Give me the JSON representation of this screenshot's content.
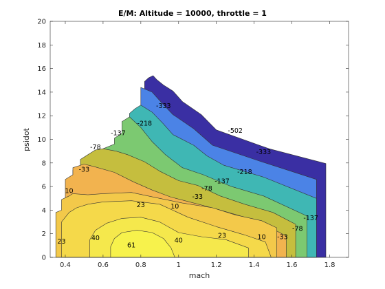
{
  "chart_data": {
    "type": "contour",
    "title": "E/M: Altitude = 10000, throttle = 1",
    "xlabel": "mach",
    "ylabel": "psidot",
    "xlim": [
      0.32,
      1.9
    ],
    "ylim": [
      0,
      20
    ],
    "xticks": [
      0.4,
      0.6,
      0.8,
      1,
      1.2,
      1.4,
      1.6,
      1.8
    ],
    "xtick_labels": [
      "0.4",
      "0.6",
      "0.8",
      "1",
      "1.2",
      "1.4",
      "1.6",
      "1.8"
    ],
    "yticks": [
      0,
      2,
      4,
      6,
      8,
      10,
      12,
      14,
      16,
      18,
      20
    ],
    "ytick_labels": [
      "0",
      "2",
      "4",
      "6",
      "8",
      "10",
      "12",
      "14",
      "16",
      "18",
      "20"
    ],
    "grid": false,
    "levels": [
      -502,
      -333,
      -218,
      -137,
      -78,
      -33,
      10,
      23,
      40,
      61
    ],
    "bands": [
      {
        "level": "-502",
        "color": "#3a2fa3",
        "boundary": [
          [
            0.82,
            0
          ],
          [
            1.78,
            0
          ],
          [
            1.78,
            7.95
          ],
          [
            1.48,
            9.2
          ],
          [
            1.2,
            10.8
          ],
          [
            1.12,
            12.1
          ],
          [
            1.02,
            13.2
          ],
          [
            0.97,
            14.1
          ],
          [
            0.92,
            14.6
          ],
          [
            0.885,
            15.05
          ],
          [
            0.865,
            15.4
          ],
          [
            0.84,
            15.2
          ],
          [
            0.82,
            14.9
          ]
        ]
      },
      {
        "level": "-333",
        "color": "#4b83e6",
        "boundary": [
          [
            0.82,
            0
          ],
          [
            1.73,
            0
          ],
          [
            1.73,
            6.6
          ],
          [
            1.44,
            8.1
          ],
          [
            1.18,
            9.5
          ],
          [
            1.08,
            10.9
          ],
          [
            0.97,
            12.1
          ],
          [
            0.91,
            13.1
          ],
          [
            0.86,
            14.0
          ],
          [
            0.8,
            14.4
          ],
          [
            0.8,
            12.9
          ]
        ]
      },
      {
        "level": "-218",
        "color": "#3fb7b4",
        "boundary": [
          [
            0.82,
            0
          ],
          [
            1.73,
            0
          ],
          [
            1.73,
            5.0
          ],
          [
            1.45,
            6.8
          ],
          [
            1.24,
            7.8
          ],
          [
            1.15,
            8.6
          ],
          [
            1.08,
            9.5
          ],
          [
            0.97,
            10.4
          ],
          [
            0.92,
            11.3
          ],
          [
            0.86,
            12.3
          ],
          [
            0.8,
            12.9
          ],
          [
            0.77,
            12.6
          ],
          [
            0.74,
            12.2
          ],
          [
            0.74,
            11.9
          ]
        ]
      },
      {
        "level": "-137",
        "color": "#7cc971",
        "boundary": [
          [
            0.6,
            0
          ],
          [
            1.68,
            0
          ],
          [
            1.68,
            3.5
          ],
          [
            1.45,
            5.2
          ],
          [
            1.28,
            6.0
          ],
          [
            1.13,
            7.0
          ],
          [
            1.02,
            7.6
          ],
          [
            0.93,
            8.7
          ],
          [
            0.86,
            9.8
          ],
          [
            0.8,
            11.0
          ],
          [
            0.74,
            11.9
          ],
          [
            0.7,
            11.5
          ],
          [
            0.7,
            10.5
          ],
          [
            0.66,
            10.1
          ],
          [
            0.66,
            9.6
          ],
          [
            0.6,
            9.2
          ]
        ]
      },
      {
        "level": "-78",
        "color": "#c5be3e",
        "boundary": [
          [
            0.6,
            0
          ],
          [
            1.62,
            0
          ],
          [
            1.62,
            2.8
          ],
          [
            1.5,
            3.8
          ],
          [
            1.35,
            4.5
          ],
          [
            1.22,
            5.2
          ],
          [
            1.1,
            6.1
          ],
          [
            1.0,
            6.5
          ],
          [
            0.9,
            7.3
          ],
          [
            0.82,
            8.1
          ],
          [
            0.73,
            8.7
          ],
          [
            0.67,
            9.0
          ],
          [
            0.6,
            9.2
          ],
          [
            0.56,
            9.1
          ],
          [
            0.52,
            8.7
          ],
          [
            0.48,
            8.3
          ],
          [
            0.48,
            7.7
          ],
          [
            0.44,
            7.4
          ],
          [
            0.44,
            6.8
          ]
        ]
      },
      {
        "level": "-33",
        "color": "#f2b34f",
        "boundary": [
          [
            0.4,
            0
          ],
          [
            1.57,
            0
          ],
          [
            1.57,
            1.8
          ],
          [
            1.43,
            3.0
          ],
          [
            1.33,
            3.5
          ],
          [
            1.2,
            4.1
          ],
          [
            1.08,
            4.6
          ],
          [
            0.96,
            5.1
          ],
          [
            0.86,
            5.7
          ],
          [
            0.76,
            6.4
          ],
          [
            0.66,
            7.2
          ],
          [
            0.55,
            7.7
          ],
          [
            0.5,
            7.9
          ],
          [
            0.44,
            7.6
          ],
          [
            0.44,
            7.0
          ],
          [
            0.4,
            6.6
          ],
          [
            0.4,
            6.2
          ]
        ]
      },
      {
        "level": "10",
        "color": "#f3c94a",
        "boundary": [
          [
            0.35,
            0
          ],
          [
            1.52,
            0
          ],
          [
            1.52,
            2.5
          ],
          [
            1.44,
            3.1
          ],
          [
            1.3,
            3.6
          ],
          [
            1.18,
            4.2
          ],
          [
            1.02,
            4.6
          ],
          [
            0.9,
            5.0
          ],
          [
            0.75,
            5.5
          ],
          [
            0.6,
            5.4
          ],
          [
            0.52,
            5.3
          ],
          [
            0.44,
            5.4
          ],
          [
            0.42,
            5.2
          ],
          [
            0.38,
            4.9
          ],
          [
            0.38,
            4.0
          ],
          [
            0.35,
            3.8
          ],
          [
            0.35,
            3.3
          ]
        ]
      },
      {
        "level": "23",
        "color": "#f5d94a",
        "boundary": [
          [
            0.38,
            0
          ],
          [
            1.49,
            0
          ],
          [
            1.46,
            1.3
          ],
          [
            1.35,
            1.9
          ],
          [
            1.2,
            2.6
          ],
          [
            1.05,
            3.4
          ],
          [
            0.9,
            4.5
          ],
          [
            0.75,
            4.8
          ],
          [
            0.6,
            4.7
          ],
          [
            0.52,
            4.5
          ],
          [
            0.46,
            4.2
          ],
          [
            0.42,
            3.8
          ],
          [
            0.38,
            3.0
          ],
          [
            0.38,
            1.8
          ]
        ]
      },
      {
        "level": "40",
        "color": "#f5e84c",
        "boundary": [
          [
            0.53,
            0
          ],
          [
            1.37,
            0
          ],
          [
            1.37,
            0.8
          ],
          [
            1.25,
            1.5
          ],
          [
            1.12,
            1.75
          ],
          [
            1.0,
            2.1
          ],
          [
            0.9,
            3.0
          ],
          [
            0.8,
            3.4
          ],
          [
            0.7,
            3.3
          ],
          [
            0.62,
            2.9
          ],
          [
            0.56,
            2.3
          ],
          [
            0.53,
            1.5
          ]
        ]
      },
      {
        "level": "61",
        "color": "#f7f24c",
        "boundary": [
          [
            0.64,
            0
          ],
          [
            0.98,
            0
          ],
          [
            0.96,
            0.8
          ],
          [
            0.92,
            1.6
          ],
          [
            0.86,
            2.1
          ],
          [
            0.78,
            2.3
          ],
          [
            0.7,
            2.1
          ],
          [
            0.66,
            1.6
          ],
          [
            0.64,
            0.9
          ]
        ]
      }
    ],
    "labels": [
      {
        "text": "-502",
        "x": 1.3,
        "y": 10.7
      },
      {
        "text": "-333",
        "x": 0.92,
        "y": 12.8
      },
      {
        "text": "-333",
        "x": 1.45,
        "y": 8.9
      },
      {
        "text": "-218",
        "x": 0.82,
        "y": 11.3
      },
      {
        "text": "-218",
        "x": 1.35,
        "y": 7.2
      },
      {
        "text": "-137",
        "x": 0.68,
        "y": 10.5
      },
      {
        "text": "-137",
        "x": 1.23,
        "y": 6.4
      },
      {
        "text": "-137",
        "x": 1.7,
        "y": 3.3
      },
      {
        "text": "-78",
        "x": 0.56,
        "y": 9.3
      },
      {
        "text": "-78",
        "x": 1.15,
        "y": 5.8
      },
      {
        "text": "-78",
        "x": 1.63,
        "y": 2.4
      },
      {
        "text": "-33",
        "x": 0.5,
        "y": 7.4
      },
      {
        "text": "-33",
        "x": 1.1,
        "y": 5.1
      },
      {
        "text": "-33",
        "x": 1.55,
        "y": 1.7
      },
      {
        "text": "10",
        "x": 0.42,
        "y": 5.6
      },
      {
        "text": "10",
        "x": 0.98,
        "y": 4.3
      },
      {
        "text": "10",
        "x": 1.44,
        "y": 1.7
      },
      {
        "text": "23",
        "x": 0.38,
        "y": 1.3
      },
      {
        "text": "23",
        "x": 0.8,
        "y": 4.4
      },
      {
        "text": "23",
        "x": 1.23,
        "y": 1.8
      },
      {
        "text": "40",
        "x": 0.56,
        "y": 1.6
      },
      {
        "text": "40",
        "x": 1.0,
        "y": 1.4
      },
      {
        "text": "61",
        "x": 0.75,
        "y": 1.0
      }
    ]
  }
}
